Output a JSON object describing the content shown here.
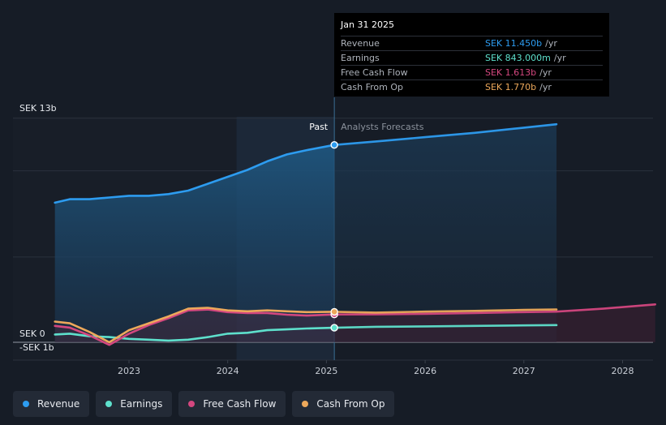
{
  "colors": {
    "revenue": "#2d9cf0",
    "earnings": "#5ee0cc",
    "free_cash_flow": "#d4477f",
    "cash_from_op": "#eda85b",
    "background": "#161c26"
  },
  "tooltip": {
    "date": "Jan 31 2025",
    "rows": [
      {
        "name": "Revenue",
        "value": "SEK 11.450b",
        "unit": "/yr",
        "color": "#2d9cf0"
      },
      {
        "name": "Earnings",
        "value": "SEK 843.000m",
        "unit": "/yr",
        "color": "#5ee0cc"
      },
      {
        "name": "Free Cash Flow",
        "value": "SEK 1.613b",
        "unit": "/yr",
        "color": "#d4477f"
      },
      {
        "name": "Cash From Op",
        "value": "SEK 1.770b",
        "unit": "/yr",
        "color": "#eda85b"
      }
    ]
  },
  "legend": [
    {
      "name": "Revenue",
      "color": "#2d9cf0"
    },
    {
      "name": "Earnings",
      "color": "#5ee0cc"
    },
    {
      "name": "Free Cash Flow",
      "color": "#d4477f"
    },
    {
      "name": "Cash From Op",
      "color": "#eda85b"
    }
  ],
  "chart_data": {
    "type": "line",
    "title": "",
    "xlabel": "",
    "ylabel": "",
    "y_axis_labels": {
      "top": "SEK 13b",
      "zero": "SEK 0",
      "bottom": "-SEK 1b"
    },
    "ylim": [
      -1,
      13
    ],
    "xlim": [
      2022.12,
      2028.33
    ],
    "x_ticks": [
      2023,
      2024,
      2025,
      2026,
      2027,
      2028
    ],
    "x_tick_labels": [
      "2023",
      "2024",
      "2025",
      "2026",
      "2027",
      "2028"
    ],
    "past_label": "Past",
    "forecast_label": "Analysts Forecasts",
    "divider_x": 2025.08,
    "grid": true,
    "legend_position": "bottom-left",
    "series": [
      {
        "name": "Revenue",
        "key": "revenue",
        "x": [
          2022.25,
          2022.4,
          2022.6,
          2022.8,
          2023.0,
          2023.2,
          2023.4,
          2023.6,
          2023.8,
          2024.0,
          2024.2,
          2024.4,
          2024.6,
          2024.8,
          2025.08
        ],
        "y": [
          8.1,
          8.3,
          8.3,
          8.4,
          8.5,
          8.5,
          8.6,
          8.8,
          9.2,
          9.6,
          10.0,
          10.5,
          10.9,
          11.15,
          11.45
        ],
        "forecast_x": [
          2025.08,
          2025.5,
          2026.0,
          2026.5,
          2027.0,
          2027.33
        ],
        "forecast_y": [
          11.45,
          11.65,
          11.9,
          12.15,
          12.45,
          12.65
        ]
      },
      {
        "name": "Earnings",
        "key": "earnings",
        "x": [
          2022.25,
          2022.4,
          2022.6,
          2022.8,
          2023.0,
          2023.2,
          2023.4,
          2023.6,
          2023.8,
          2024.0,
          2024.2,
          2024.4,
          2024.6,
          2024.8,
          2025.08
        ],
        "y": [
          0.45,
          0.5,
          0.35,
          0.3,
          0.2,
          0.15,
          0.1,
          0.15,
          0.3,
          0.5,
          0.55,
          0.7,
          0.75,
          0.8,
          0.843
        ],
        "forecast_x": [
          2025.08,
          2025.5,
          2026.0,
          2026.5,
          2027.0,
          2027.33
        ],
        "forecast_y": [
          0.843,
          0.9,
          0.92,
          0.95,
          0.98,
          1.0
        ]
      },
      {
        "name": "Free Cash Flow",
        "key": "free_cash_flow",
        "x": [
          2022.25,
          2022.4,
          2022.6,
          2022.8,
          2023.0,
          2023.2,
          2023.4,
          2023.6,
          2023.8,
          2024.0,
          2024.2,
          2024.4,
          2024.6,
          2024.8,
          2025.08
        ],
        "y": [
          0.95,
          0.85,
          0.4,
          -0.15,
          0.5,
          1.0,
          1.4,
          1.85,
          1.9,
          1.75,
          1.7,
          1.7,
          1.6,
          1.55,
          1.613
        ],
        "forecast_x": [
          2025.08,
          2025.5,
          2026.0,
          2026.5,
          2027.0,
          2027.33,
          2027.8,
          2028.33
        ],
        "forecast_y": [
          1.613,
          1.62,
          1.65,
          1.7,
          1.75,
          1.78,
          1.95,
          2.2
        ]
      },
      {
        "name": "Cash From Op",
        "key": "cash_from_op",
        "x": [
          2022.25,
          2022.4,
          2022.6,
          2022.8,
          2023.0,
          2023.2,
          2023.4,
          2023.6,
          2023.8,
          2024.0,
          2024.2,
          2024.4,
          2024.6,
          2024.8,
          2025.08
        ],
        "y": [
          1.2,
          1.1,
          0.6,
          0.0,
          0.7,
          1.1,
          1.5,
          1.95,
          2.0,
          1.85,
          1.8,
          1.85,
          1.8,
          1.75,
          1.77
        ],
        "forecast_x": [
          2025.08,
          2025.5,
          2026.0,
          2026.5,
          2027.0,
          2027.33
        ],
        "forecast_y": [
          1.77,
          1.72,
          1.78,
          1.82,
          1.88,
          1.9
        ]
      }
    ]
  }
}
